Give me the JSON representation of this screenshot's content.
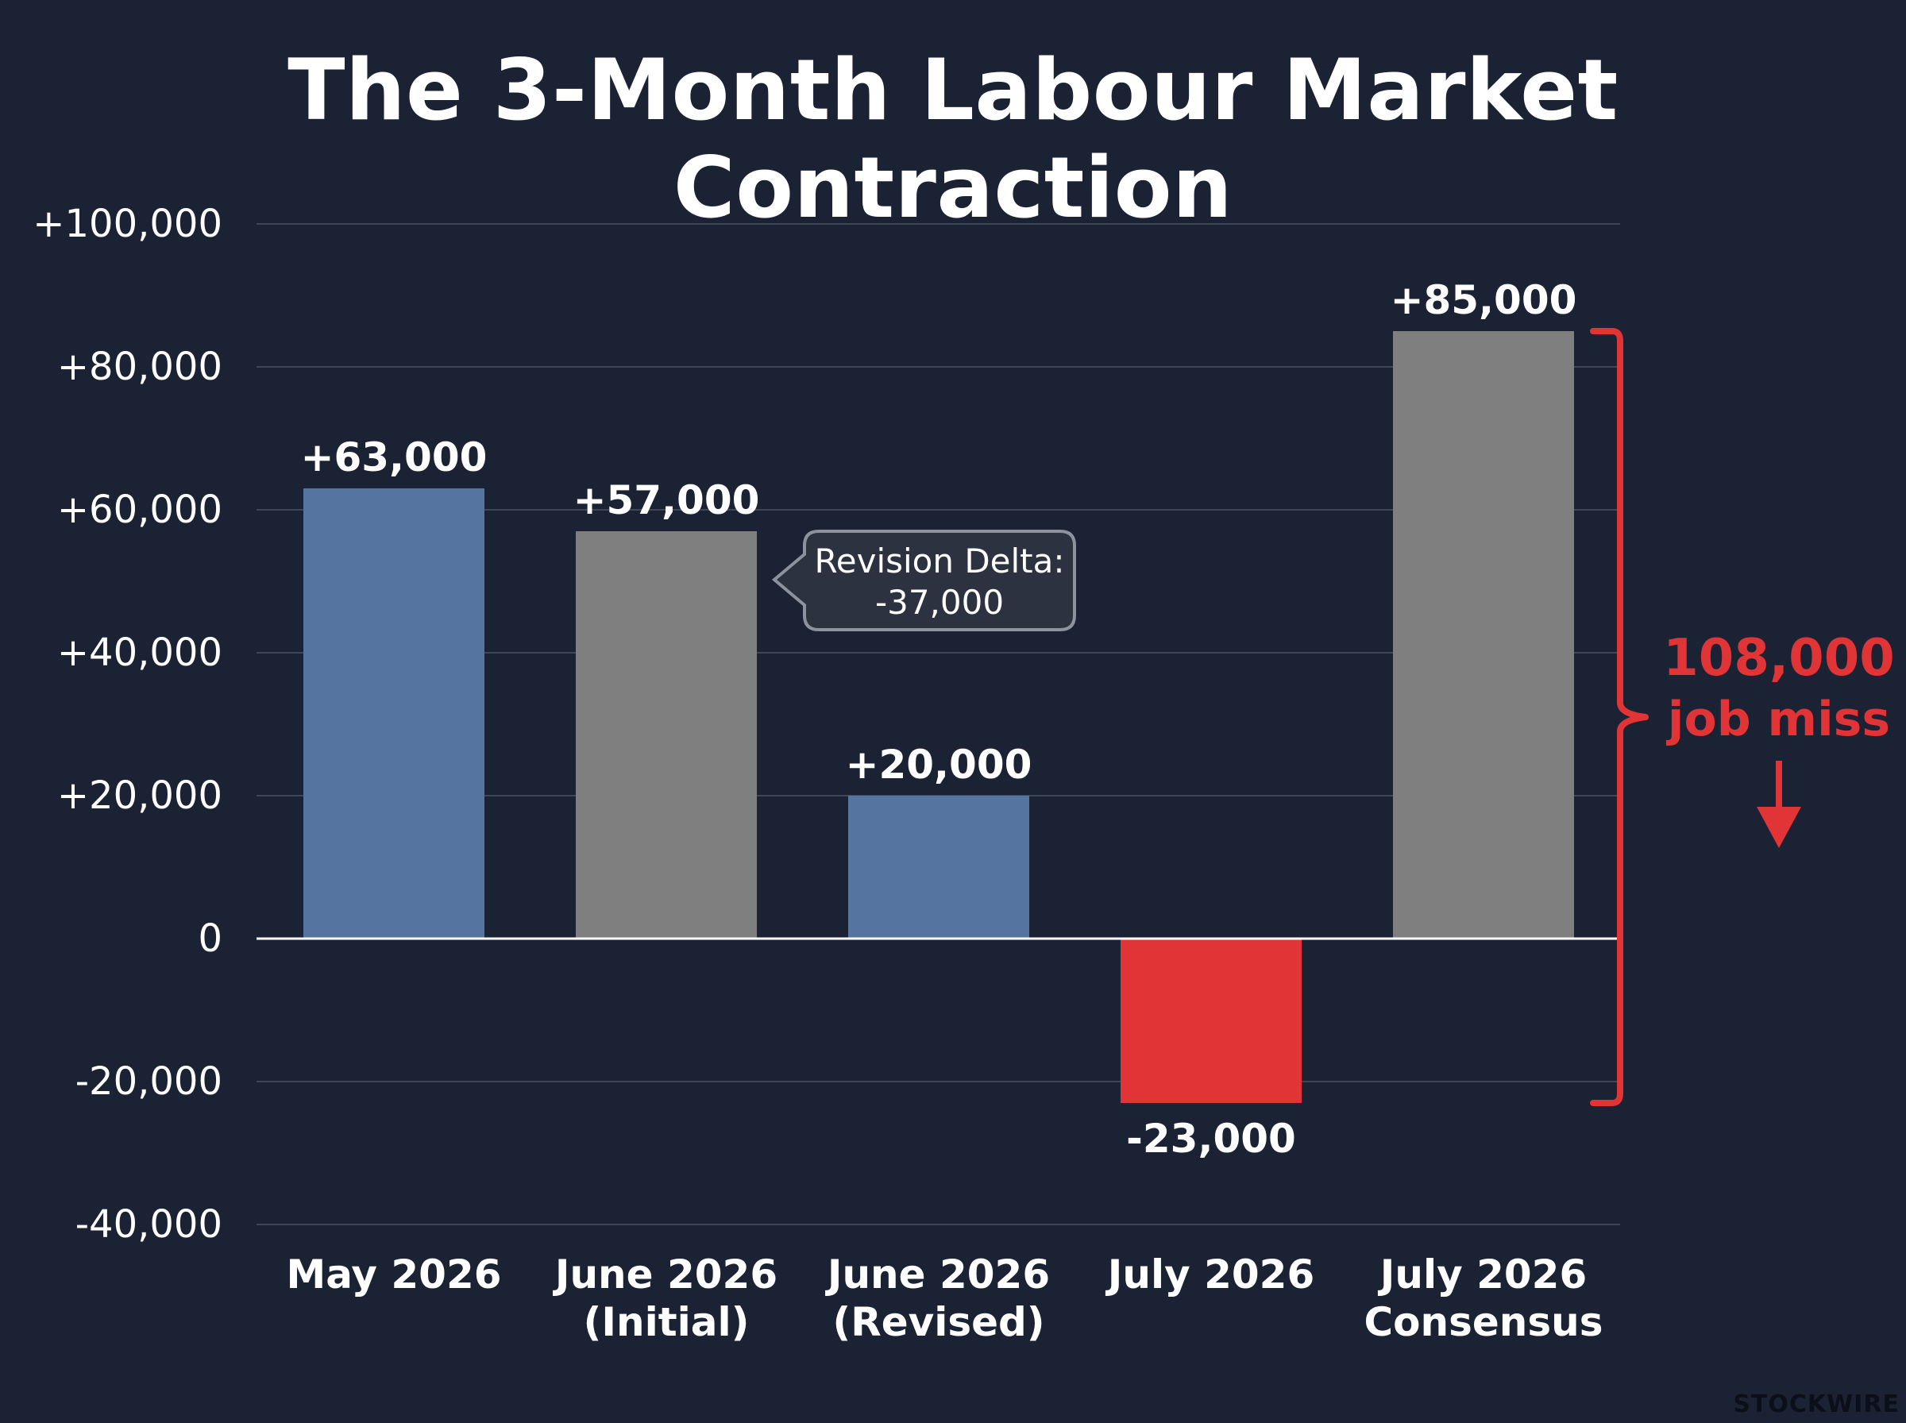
{
  "chart_data": {
    "type": "bar",
    "title": "The 3-Month Labour Market Contraction",
    "categories": [
      [
        "May 2026"
      ],
      [
        "June 2026",
        "(Initial)"
      ],
      [
        "June 2026",
        "(Revised)"
      ],
      [
        "July 2026"
      ],
      [
        "July 2026",
        "Consensus"
      ]
    ],
    "values": [
      63000,
      57000,
      20000,
      -23000,
      85000
    ],
    "value_labels": [
      "+63,000",
      "+57,000",
      "+20,000",
      "-23,000",
      "+85,000"
    ],
    "bar_colors": [
      "#5574a0",
      "#7f7f7f",
      "#5574a0",
      "#e03437",
      "#7f7f7f"
    ],
    "ylim": [
      -40000,
      100000
    ],
    "yticks": [
      100000,
      80000,
      60000,
      40000,
      20000,
      0,
      -20000,
      -40000
    ],
    "ytick_labels": [
      "+100,000",
      "+80,000",
      "+60,000",
      "+40,000",
      "+20,000",
      "0",
      "-20,000",
      "-40,000"
    ],
    "grid": true,
    "annotations": {
      "revision_callout": {
        "lines": [
          "Revision Delta:",
          "-37,000"
        ],
        "anchor_category_index": 1
      },
      "miss_bracket": {
        "from_value": -23000,
        "to_value": 85000,
        "value_text": "108,000",
        "caption": "job miss",
        "color": "#e03437"
      }
    }
  },
  "colors": {
    "background": "#1b2233",
    "grid": "#3e4657",
    "text": "#ffffff",
    "accent_red": "#e03437"
  },
  "watermark": "STOCKWIRE"
}
